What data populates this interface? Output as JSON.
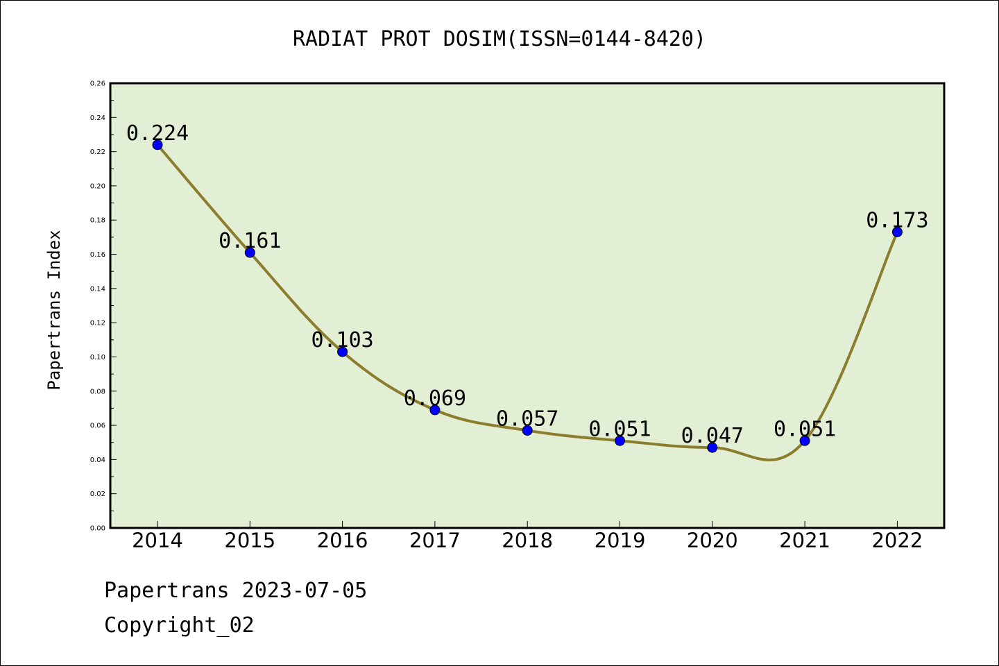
{
  "chart_data": {
    "type": "line",
    "title": "RADIAT PROT DOSIM(ISSN=0144-8420)",
    "ylabel": "Papertrans Index",
    "xlabel": "",
    "categories": [
      "2014",
      "2015",
      "2016",
      "2017",
      "2018",
      "2019",
      "2020",
      "2021",
      "2022"
    ],
    "series": [
      {
        "values": [
          0.224,
          0.161,
          0.103,
          0.069,
          0.057,
          0.051,
          0.047,
          0.051,
          0.173
        ]
      }
    ],
    "data_labels": [
      "0.224",
      "0.161",
      "0.103",
      "0.069",
      "0.057",
      "0.051",
      "0.047",
      "0.051",
      "0.173"
    ],
    "ylim": [
      0,
      0.26
    ],
    "yticks": [
      "0.00",
      "0.02",
      "0.04",
      "0.06",
      "0.08",
      "0.10",
      "0.12",
      "0.14",
      "0.16",
      "0.18",
      "0.20",
      "0.22",
      "0.24",
      "0.26"
    ],
    "grid": false,
    "colors": {
      "plot_background": "#e2efd4",
      "line": "#8b7d2e",
      "marker": "#0000ff"
    }
  },
  "footer": {
    "line1": "Papertrans 2023-07-05",
    "line2": "Copyright_02"
  }
}
